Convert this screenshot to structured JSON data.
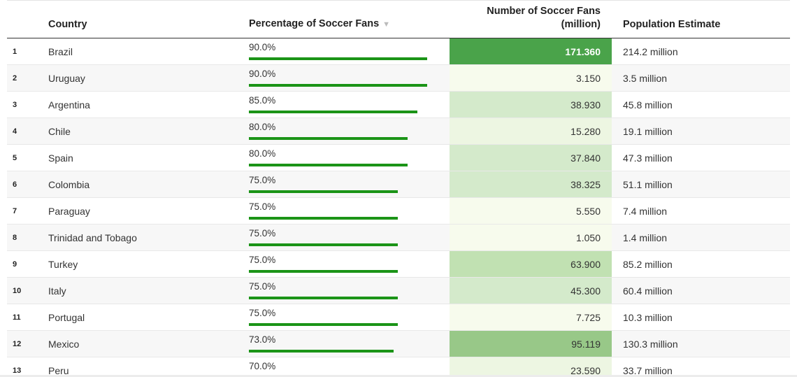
{
  "table": {
    "headers": {
      "rank": "",
      "country": "Country",
      "percentage": "Percentage of Soccer Fans",
      "sort_indicator": "▼",
      "fans_line1": "Number of Soccer Fans",
      "fans_line2": "(million)",
      "population": "Population Estimate"
    },
    "bar_color": "#1b9417",
    "heat_colors": {
      "very_light": "#f7fbed",
      "light": "#edf6e2",
      "mid_light": "#d4eacb",
      "mid": "#c1e1b2",
      "strong": "#98c888",
      "max": "#4aa34a"
    },
    "rows": [
      {
        "rank": "1",
        "country": "Brazil",
        "pct_label": "90.0%",
        "pct": 90.0,
        "fans": "171.360",
        "fans_value": 171.36,
        "population": "214.2 million"
      },
      {
        "rank": "2",
        "country": "Uruguay",
        "pct_label": "90.0%",
        "pct": 90.0,
        "fans": "3.150",
        "fans_value": 3.15,
        "population": "3.5 million"
      },
      {
        "rank": "3",
        "country": "Argentina",
        "pct_label": "85.0%",
        "pct": 85.0,
        "fans": "38.930",
        "fans_value": 38.93,
        "population": "45.8 million"
      },
      {
        "rank": "4",
        "country": "Chile",
        "pct_label": "80.0%",
        "pct": 80.0,
        "fans": "15.280",
        "fans_value": 15.28,
        "population": "19.1 million"
      },
      {
        "rank": "5",
        "country": "Spain",
        "pct_label": "80.0%",
        "pct": 80.0,
        "fans": "37.840",
        "fans_value": 37.84,
        "population": "47.3 million"
      },
      {
        "rank": "6",
        "country": "Colombia",
        "pct_label": "75.0%",
        "pct": 75.0,
        "fans": "38.325",
        "fans_value": 38.325,
        "population": "51.1 million"
      },
      {
        "rank": "7",
        "country": "Paraguay",
        "pct_label": "75.0%",
        "pct": 75.0,
        "fans": "5.550",
        "fans_value": 5.55,
        "population": "7.4 million"
      },
      {
        "rank": "8",
        "country": "Trinidad and Tobago",
        "pct_label": "75.0%",
        "pct": 75.0,
        "fans": "1.050",
        "fans_value": 1.05,
        "population": "1.4 million"
      },
      {
        "rank": "9",
        "country": "Turkey",
        "pct_label": "75.0%",
        "pct": 75.0,
        "fans": "63.900",
        "fans_value": 63.9,
        "population": "85.2 million"
      },
      {
        "rank": "10",
        "country": "Italy",
        "pct_label": "75.0%",
        "pct": 75.0,
        "fans": "45.300",
        "fans_value": 45.3,
        "population": "60.4 million"
      },
      {
        "rank": "11",
        "country": "Portugal",
        "pct_label": "75.0%",
        "pct": 75.0,
        "fans": "7.725",
        "fans_value": 7.725,
        "population": "10.3 million"
      },
      {
        "rank": "12",
        "country": "Mexico",
        "pct_label": "73.0%",
        "pct": 73.0,
        "fans": "95.119",
        "fans_value": 95.119,
        "population": "130.3 million"
      },
      {
        "rank": "13",
        "country": "Peru",
        "pct_label": "70.0%",
        "pct": 70.0,
        "fans": "23.590",
        "fans_value": 23.59,
        "population": "33.7 million"
      }
    ]
  }
}
